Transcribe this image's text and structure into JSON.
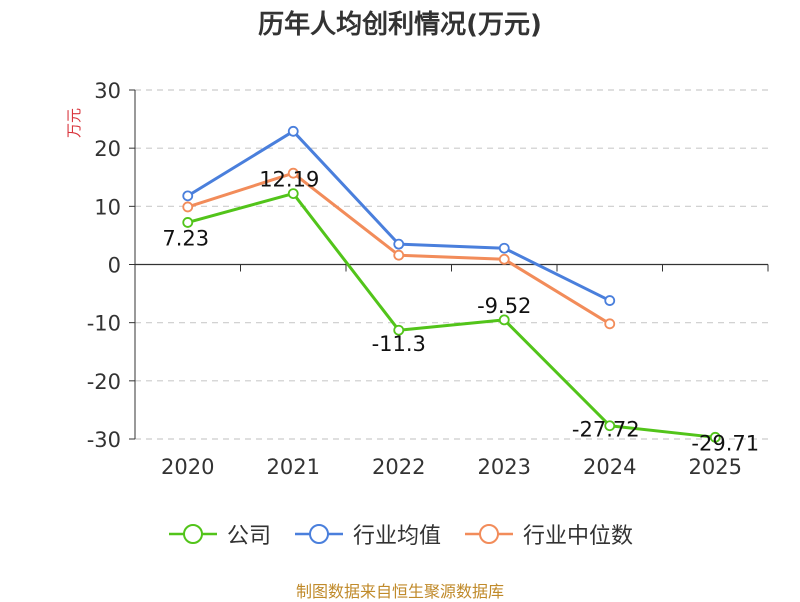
{
  "chart_data": {
    "type": "line",
    "title": "历年人均创利情况(万元)",
    "ylabel": "万元",
    "xlabel": "",
    "categories": [
      "2020",
      "2021",
      "2022",
      "2023",
      "2024",
      "2025"
    ],
    "ylim": [
      -30,
      30
    ],
    "yticks": [
      30,
      20,
      10,
      0,
      -10,
      -20,
      -30
    ],
    "grid": true,
    "legend_position": "bottom",
    "series": [
      {
        "name": "公司",
        "color": "#52c41a",
        "values": [
          7.23,
          12.19,
          -11.3,
          -9.52,
          -27.72,
          -29.71
        ],
        "labels": [
          "7.23",
          "12.19",
          "-11.3",
          "-9.52",
          "-27.72",
          "-29.71"
        ]
      },
      {
        "name": "行业均值",
        "color": "#4a7fdc",
        "values": [
          11.8,
          22.9,
          3.5,
          2.8,
          -6.2,
          null
        ]
      },
      {
        "name": "行业中位数",
        "color": "#f28c5a",
        "values": [
          9.9,
          15.7,
          1.6,
          0.9,
          -10.2,
          null
        ]
      }
    ]
  },
  "source": "制图数据来自恒生聚源数据库",
  "colors": {
    "axis": "#333333",
    "grid": "#cccccc",
    "ylabel": "#d9363e",
    "source": "#c08a2a"
  }
}
